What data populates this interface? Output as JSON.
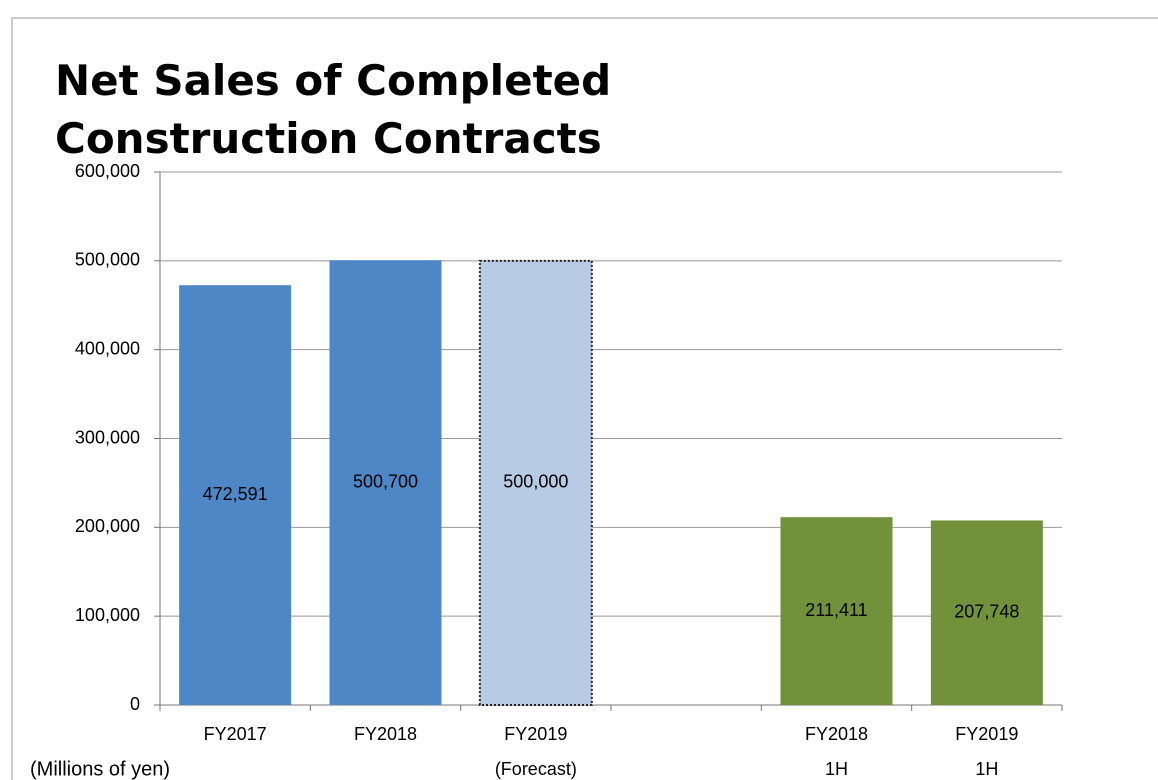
{
  "chart_data": {
    "type": "bar",
    "title": "Net Sales of Completed Construction Contracts",
    "ylabel": "(Millions of yen)",
    "categories": [
      "FY2017",
      "FY2018",
      "FY2019",
      null,
      "FY2018",
      "FY2019"
    ],
    "category_sublabels": [
      null,
      null,
      "(Forecast)",
      null,
      "1H",
      "1H"
    ],
    "values": [
      472591,
      500700,
      500000,
      null,
      211411,
      207748
    ],
    "value_labels": [
      "472,591",
      "500,700",
      "500,000",
      null,
      "211,411",
      "207,748"
    ],
    "colors": [
      "#4e87c6",
      "#4e87c6",
      "#b7cbe5",
      null,
      "#71923a",
      "#71923a"
    ],
    "dotted_border": [
      false,
      false,
      true,
      false,
      false,
      false
    ],
    "ylim": [
      0,
      600000
    ],
    "yticks": [
      0,
      {
        "value": 100000,
        "label": "100,000"
      },
      {
        "value": 200000,
        "label": "200,000"
      },
      {
        "value": 300000,
        "label": "300,000"
      },
      {
        "value": 400000,
        "label": "400,000"
      },
      {
        "value": 500000,
        "label": "500,000"
      },
      {
        "value": 600000,
        "label": "600,000"
      }
    ],
    "grid": true
  }
}
